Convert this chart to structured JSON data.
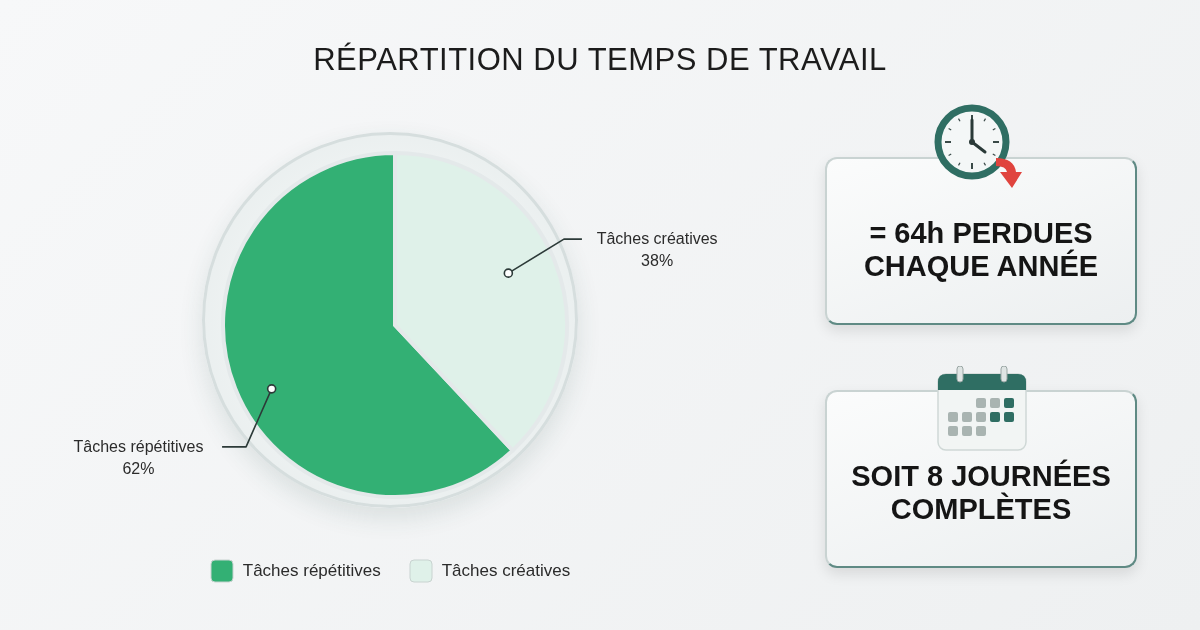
{
  "chart_data": {
    "type": "pie",
    "title": "RÉPARTITION DU TEMPS DE TRAVAIL",
    "categories": [
      "Tâches répétitives",
      "Tâches créatives"
    ],
    "values": [
      62,
      38
    ],
    "colors": [
      "#33b074",
      "#dff1e9"
    ],
    "value_labels": [
      "62%",
      "38%"
    ],
    "legend": "bottom",
    "annotations": [
      "= 64h PERDUES CHAQUE ANNÉE",
      "SOIT 8 JOURNÉES COMPLÈTES"
    ]
  }
}
